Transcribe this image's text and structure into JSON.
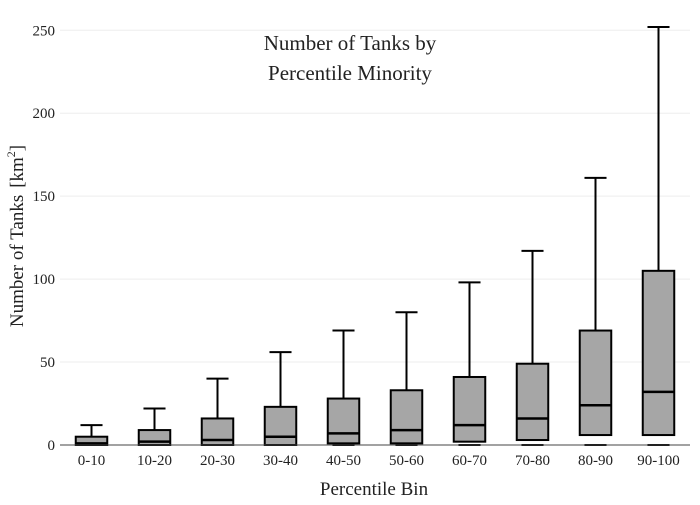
{
  "chart_data": {
    "type": "box",
    "title_lines": [
      "Number of Tanks by",
      "Percentile Minority"
    ],
    "xlabel": "Percentile Bin",
    "ylabel": "Number of Tanks",
    "ylabel_unit_base": "[km",
    "ylabel_unit_exp": "2",
    "ylabel_unit_close": "]",
    "ylim": [
      0,
      255
    ],
    "yticks": [
      0,
      50,
      100,
      150,
      200,
      250
    ],
    "grid": true,
    "categories": [
      "0-10",
      "10-20",
      "20-30",
      "30-40",
      "40-50",
      "50-60",
      "60-70",
      "70-80",
      "80-90",
      "90-100"
    ],
    "boxes": [
      {
        "category": "0-10",
        "min": 0,
        "q1": 0,
        "median": 1,
        "q3": 5,
        "max": 12
      },
      {
        "category": "10-20",
        "min": 0,
        "q1": 0,
        "median": 2,
        "q3": 9,
        "max": 22
      },
      {
        "category": "20-30",
        "min": 0,
        "q1": 0,
        "median": 3,
        "q3": 16,
        "max": 40
      },
      {
        "category": "30-40",
        "min": 0,
        "q1": 0,
        "median": 5,
        "q3": 23,
        "max": 56
      },
      {
        "category": "40-50",
        "min": 0,
        "q1": 1,
        "median": 7,
        "q3": 28,
        "max": 69
      },
      {
        "category": "50-60",
        "min": 0,
        "q1": 1,
        "median": 9,
        "q3": 33,
        "max": 80
      },
      {
        "category": "60-70",
        "min": 0,
        "q1": 2,
        "median": 12,
        "q3": 41,
        "max": 98
      },
      {
        "category": "70-80",
        "min": 0,
        "q1": 3,
        "median": 16,
        "q3": 49,
        "max": 117
      },
      {
        "category": "80-90",
        "min": 0,
        "q1": 6,
        "median": 24,
        "q3": 69,
        "max": 161
      },
      {
        "category": "90-100",
        "min": 0,
        "q1": 6,
        "median": 32,
        "q3": 105,
        "max": 252
      }
    ],
    "colors": {
      "box_fill": "#a6a6a6",
      "box_stroke": "#000000",
      "grid": "#eeeeee",
      "axis": "#444444"
    }
  }
}
